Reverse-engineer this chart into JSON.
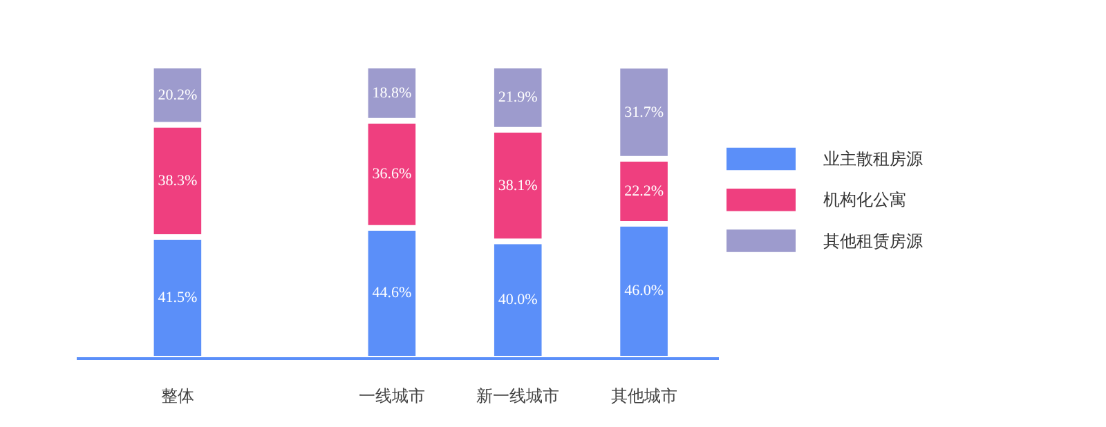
{
  "chart_data": {
    "type": "bar",
    "stacked": true,
    "legend": "right",
    "categories": [
      "整体",
      "一线城市",
      "新一线城市",
      "其他城市"
    ],
    "series": [
      {
        "name": "业主散租房源",
        "color": "#5b8ff9",
        "values": [
          41.5,
          44.6,
          40.0,
          46.0
        ],
        "value_labels": [
          "41.5%",
          "44.6%",
          "40.0%",
          "46.0%"
        ]
      },
      {
        "name": "机构化公寓",
        "color": "#ef3f7f",
        "values": [
          38.3,
          36.6,
          38.1,
          22.2
        ],
        "value_labels": [
          "38.3%",
          "36.6%",
          "38.1%",
          "22.2%"
        ]
      },
      {
        "name": "其他租赁房源",
        "color": "#9d9bcd",
        "values": [
          20.2,
          18.8,
          21.9,
          31.7
        ],
        "value_labels": [
          "20.2%",
          "18.8%",
          "21.9%",
          "31.7%"
        ]
      }
    ]
  }
}
